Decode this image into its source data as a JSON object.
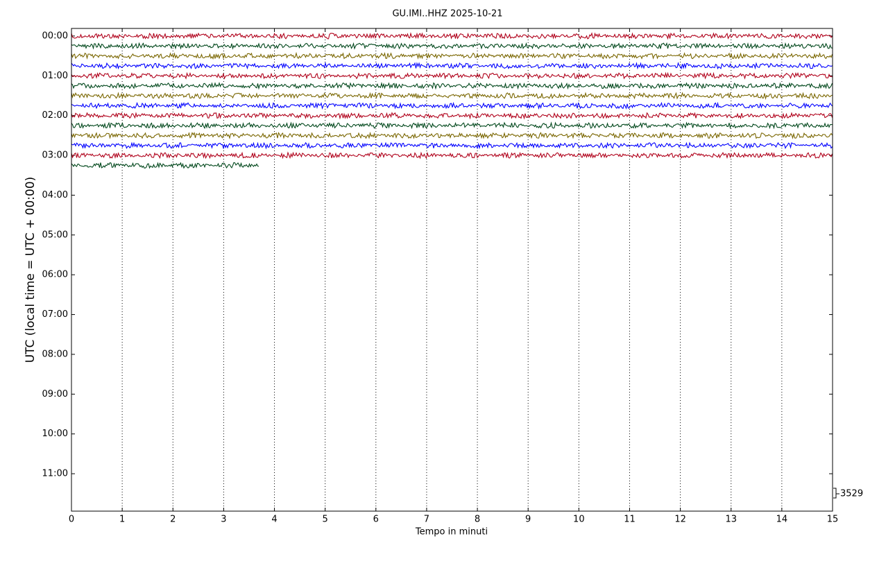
{
  "chart_data": {
    "type": "helicorder",
    "title": "GU.IMI..HHZ 2025-10-21",
    "xlabel": "Tempo in minuti",
    "ylabel": "UTC (local time = UTC + 00:00)",
    "xlim": [
      0,
      15
    ],
    "xticks": [
      0,
      1,
      2,
      3,
      4,
      5,
      6,
      7,
      8,
      9,
      10,
      11,
      12,
      13,
      14,
      15
    ],
    "ylim": [
      11.94,
      -0.19
    ],
    "yticks": [
      {
        "value": 0,
        "label": "00:00"
      },
      {
        "value": 1,
        "label": "01:00"
      },
      {
        "value": 2,
        "label": "02:00"
      },
      {
        "value": 3,
        "label": "03:00"
      },
      {
        "value": 4,
        "label": "04:00"
      },
      {
        "value": 5,
        "label": "05:00"
      },
      {
        "value": 6,
        "label": "06:00"
      },
      {
        "value": 7,
        "label": "07:00"
      },
      {
        "value": 8,
        "label": "08:00"
      },
      {
        "value": 9,
        "label": "09:00"
      },
      {
        "value": 10,
        "label": "10:00"
      },
      {
        "value": 11,
        "label": "11:00"
      }
    ],
    "grid": true,
    "scale": 3529,
    "series": [
      {
        "color": "#b0001a",
        "offset": 0,
        "start": 0,
        "end": 15
      },
      {
        "color": "#00471b",
        "offset": 0.25,
        "start": 0,
        "end": 15
      },
      {
        "color": "#7a6600",
        "offset": 0.5,
        "start": 0,
        "end": 15
      },
      {
        "color": "#0000ff",
        "offset": 0.75,
        "start": 0,
        "end": 15
      },
      {
        "color": "#b0001a",
        "offset": 1,
        "start": 0,
        "end": 15
      },
      {
        "color": "#00471b",
        "offset": 1.25,
        "start": 0,
        "end": 15
      },
      {
        "color": "#7a6600",
        "offset": 1.5,
        "start": 0,
        "end": 15
      },
      {
        "color": "#0000ff",
        "offset": 1.75,
        "start": 0,
        "end": 15
      },
      {
        "color": "#b0001a",
        "offset": 2,
        "start": 0,
        "end": 15
      },
      {
        "color": "#00471b",
        "offset": 2.25,
        "start": 0,
        "end": 15
      },
      {
        "color": "#7a6600",
        "offset": 2.5,
        "start": 0,
        "end": 15
      },
      {
        "color": "#0000ff",
        "offset": 2.75,
        "start": 0,
        "end": 15
      },
      {
        "color": "#b0001a",
        "offset": 3,
        "start": 0,
        "end": 15
      },
      {
        "color": "#00471b",
        "offset": 3.25,
        "start": 0,
        "end": 3.7
      }
    ]
  }
}
